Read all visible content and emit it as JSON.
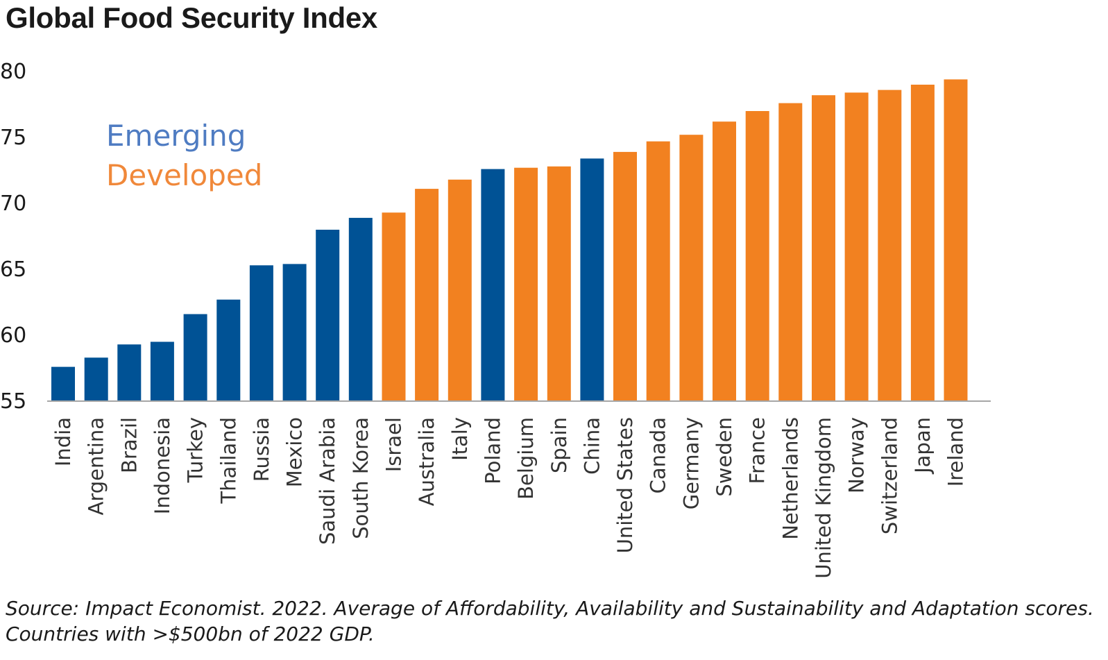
{
  "chart_data": {
    "type": "bar",
    "title": "Global Food Security Index",
    "ylim": [
      55,
      80
    ],
    "yticks": [
      55,
      60,
      65,
      70,
      75,
      80
    ],
    "grid": false,
    "categories": [
      "India",
      "Argentina",
      "Brazil",
      "Indonesia",
      "Turkey",
      "Thailand",
      "Russia",
      "Mexico",
      "Saudi Arabia",
      "South Korea",
      "Israel",
      "Australia",
      "Italy",
      "Poland",
      "Belgium",
      "Spain",
      "China",
      "United States",
      "Canada",
      "Germany",
      "Sweden",
      "France",
      "Netherlands",
      "United Kingdom",
      "Norway",
      "Switzerland",
      "Japan",
      "Ireland"
    ],
    "values": [
      57.6,
      58.3,
      59.3,
      59.5,
      61.6,
      62.7,
      65.3,
      65.4,
      68.0,
      68.9,
      69.3,
      71.1,
      71.8,
      72.6,
      72.7,
      72.8,
      73.4,
      73.9,
      74.7,
      75.2,
      76.2,
      77.0,
      77.6,
      78.2,
      78.4,
      78.6,
      79.0,
      79.4
    ],
    "groups": [
      "Emerging",
      "Emerging",
      "Emerging",
      "Emerging",
      "Emerging",
      "Emerging",
      "Emerging",
      "Emerging",
      "Emerging",
      "Emerging",
      "Developed",
      "Developed",
      "Developed",
      "Emerging",
      "Developed",
      "Developed",
      "Emerging",
      "Developed",
      "Developed",
      "Developed",
      "Developed",
      "Developed",
      "Developed",
      "Developed",
      "Developed",
      "Developed",
      "Developed",
      "Developed"
    ],
    "legend": {
      "placement": "top-left",
      "items": [
        {
          "name": "Emerging",
          "label_color": "#4f7cc2",
          "bar_color": "#005295"
        },
        {
          "name": "Developed",
          "label_color": "#f0883a",
          "bar_color": "#f28120"
        }
      ]
    }
  },
  "source": {
    "line1": "Source: Impact Economist. 2022. Average of Affordability, Availability and Sustainability and Adaptation scores.",
    "line2": "Countries with >$500bn of 2022 GDP."
  }
}
